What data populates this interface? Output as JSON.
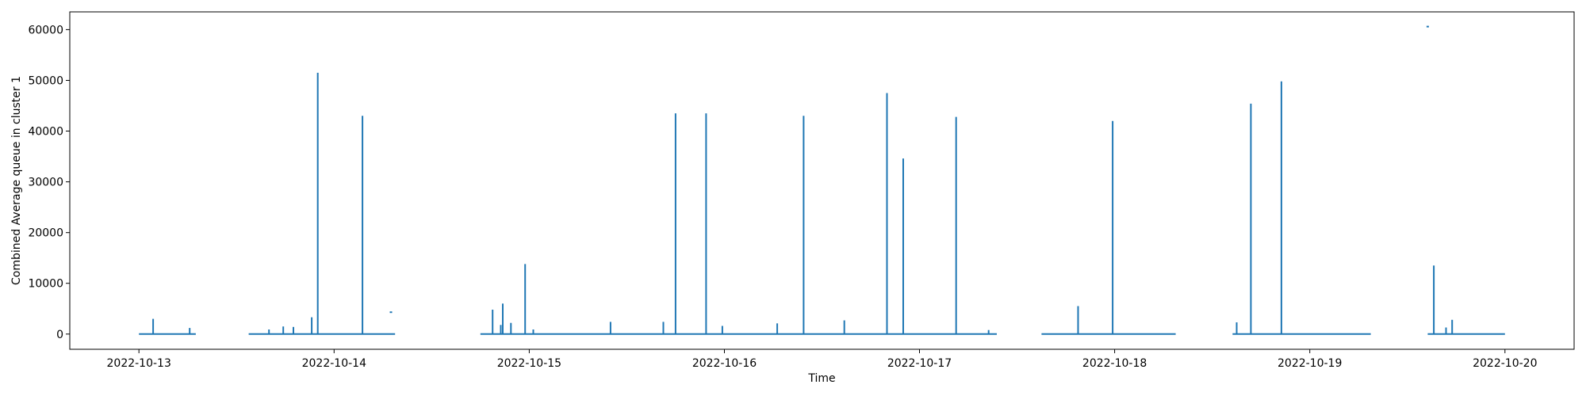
{
  "chart_data": {
    "type": "line",
    "title": "",
    "xlabel": "Time",
    "ylabel": "Combined Average queue in cluster 1",
    "x_ticks": [
      "2022-10-13",
      "2022-10-14",
      "2022-10-15",
      "2022-10-16",
      "2022-10-17",
      "2022-10-18",
      "2022-10-19",
      "2022-10-20"
    ],
    "y_ticks": [
      0,
      10000,
      20000,
      30000,
      40000,
      50000,
      60000
    ],
    "xlim": [
      "2022-10-12T15:30",
      "2022-10-20T08:30"
    ],
    "ylim": [
      -3000,
      63500
    ],
    "grid": false,
    "color": "#1f77b4",
    "segments": [
      {
        "start": "2022-10-13T00:00",
        "end": "2022-10-13T07:00"
      },
      {
        "start": "2022-10-13T13:30",
        "end": "2022-10-14T07:30"
      },
      {
        "start": "2022-10-14T18:00",
        "end": "2022-10-17T09:30"
      },
      {
        "start": "2022-10-17T15:00",
        "end": "2022-10-18T07:30"
      },
      {
        "start": "2022-10-18T14:30",
        "end": "2022-10-19T07:30"
      },
      {
        "start": "2022-10-19T14:30",
        "end": "2022-10-20T00:00"
      }
    ],
    "spikes": [
      {
        "x": "2022-10-13T01:45",
        "y": 3000
      },
      {
        "x": "2022-10-13T06:15",
        "y": 1200
      },
      {
        "x": "2022-10-13T16:00",
        "y": 900
      },
      {
        "x": "2022-10-13T17:45",
        "y": 1500
      },
      {
        "x": "2022-10-13T19:00",
        "y": 1400
      },
      {
        "x": "2022-10-13T21:15",
        "y": 3300
      },
      {
        "x": "2022-10-13T22:00",
        "y": 51500
      },
      {
        "x": "2022-10-14T03:30",
        "y": 43000
      },
      {
        "x": "2022-10-14T19:30",
        "y": 4800
      },
      {
        "x": "2022-10-14T20:30",
        "y": 1800
      },
      {
        "x": "2022-10-14T20:45",
        "y": 6000
      },
      {
        "x": "2022-10-14T21:45",
        "y": 2200
      },
      {
        "x": "2022-10-14T23:30",
        "y": 13800
      },
      {
        "x": "2022-10-15T00:30",
        "y": 900
      },
      {
        "x": "2022-10-15T10:00",
        "y": 2400
      },
      {
        "x": "2022-10-15T16:30",
        "y": 2400
      },
      {
        "x": "2022-10-15T18:00",
        "y": 43500
      },
      {
        "x": "2022-10-15T21:45",
        "y": 43500
      },
      {
        "x": "2022-10-15T23:45",
        "y": 1600
      },
      {
        "x": "2022-10-16T06:30",
        "y": 2100
      },
      {
        "x": "2022-10-16T09:45",
        "y": 43000
      },
      {
        "x": "2022-10-16T14:45",
        "y": 2700
      },
      {
        "x": "2022-10-16T20:00",
        "y": 47500
      },
      {
        "x": "2022-10-16T22:00",
        "y": 34600
      },
      {
        "x": "2022-10-17T04:30",
        "y": 42800
      },
      {
        "x": "2022-10-17T08:30",
        "y": 800
      },
      {
        "x": "2022-10-17T19:30",
        "y": 5500
      },
      {
        "x": "2022-10-17T23:45",
        "y": 42000
      },
      {
        "x": "2022-10-18T15:00",
        "y": 2300
      },
      {
        "x": "2022-10-18T16:45",
        "y": 45400
      },
      {
        "x": "2022-10-18T20:30",
        "y": 49800
      },
      {
        "x": "2022-10-19T15:15",
        "y": 13500
      },
      {
        "x": "2022-10-19T16:45",
        "y": 1300
      },
      {
        "x": "2022-10-19T17:30",
        "y": 2800
      }
    ],
    "points": [
      {
        "x": "2022-10-14T07:00",
        "y": 4300
      },
      {
        "x": "2022-10-19T14:30",
        "y": 60600
      }
    ]
  }
}
